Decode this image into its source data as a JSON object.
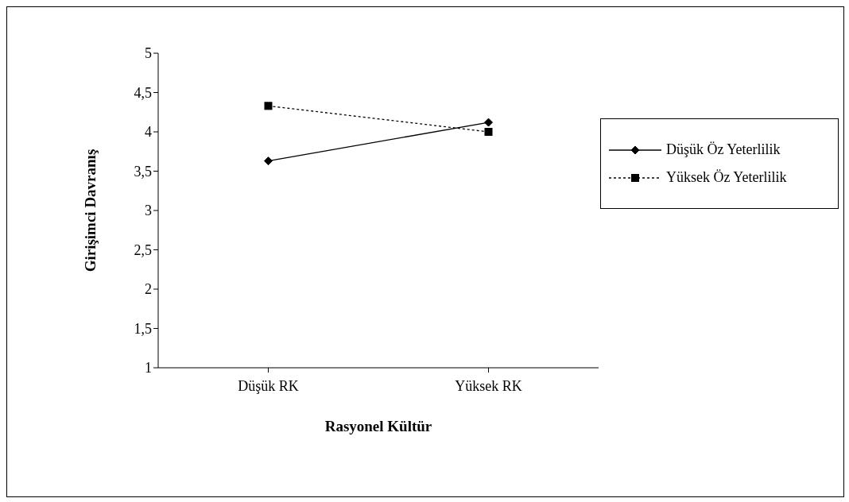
{
  "chart_data": {
    "type": "line",
    "xlabel": "Rasyonel Kültür",
    "ylabel": "Girişimci Davranış",
    "categories": [
      "Düşük RK",
      "Yüksek RK"
    ],
    "series": [
      {
        "name": "Düşük Öz Yeterlilik",
        "color": "#000000",
        "values": [
          3.63,
          4.12
        ],
        "marker": "diamond",
        "line_style": "solid"
      },
      {
        "name": "Yüksek Öz Yeterlilik",
        "color": "#000000",
        "values": [
          4.33,
          4.0
        ],
        "marker": "square",
        "line_style": "dotted"
      }
    ],
    "ylim": [
      1,
      5
    ],
    "yticks": [
      1,
      {
        "value": 1.5,
        "label": "1,5"
      },
      2,
      {
        "value": 2.5,
        "label": "2,5"
      },
      3,
      {
        "value": 3.5,
        "label": "3,5"
      },
      4,
      {
        "value": 4.5,
        "label": "4,5"
      },
      5
    ],
    "grid": false,
    "legend": "right"
  }
}
